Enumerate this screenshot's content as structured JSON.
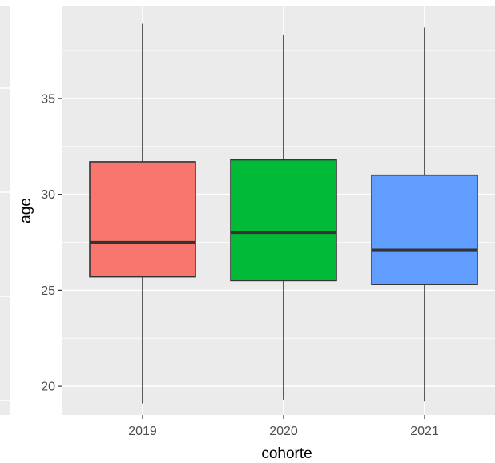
{
  "chart_data": {
    "type": "boxplot",
    "xlabel": "cohorte",
    "ylabel": "age",
    "categories": [
      "2019",
      "2020",
      "2021"
    ],
    "series": [
      {
        "category": "2019",
        "min": 19.1,
        "q1": 25.7,
        "median": 27.5,
        "q3": 31.7,
        "max": 38.9,
        "color": "#F8766D"
      },
      {
        "category": "2020",
        "min": 19.3,
        "q1": 25.5,
        "median": 28.0,
        "q3": 31.8,
        "max": 38.3,
        "color": "#00BA38"
      },
      {
        "category": "2021",
        "min": 19.2,
        "q1": 25.3,
        "median": 27.1,
        "q3": 31.0,
        "max": 38.7,
        "color": "#619CFF"
      }
    ],
    "yticks": [
      20,
      25,
      30,
      35
    ],
    "ylim": [
      18.5,
      39.8
    ],
    "grid": true,
    "panel_background": "#EBEBEB",
    "grid_color": "#FFFFFF"
  }
}
